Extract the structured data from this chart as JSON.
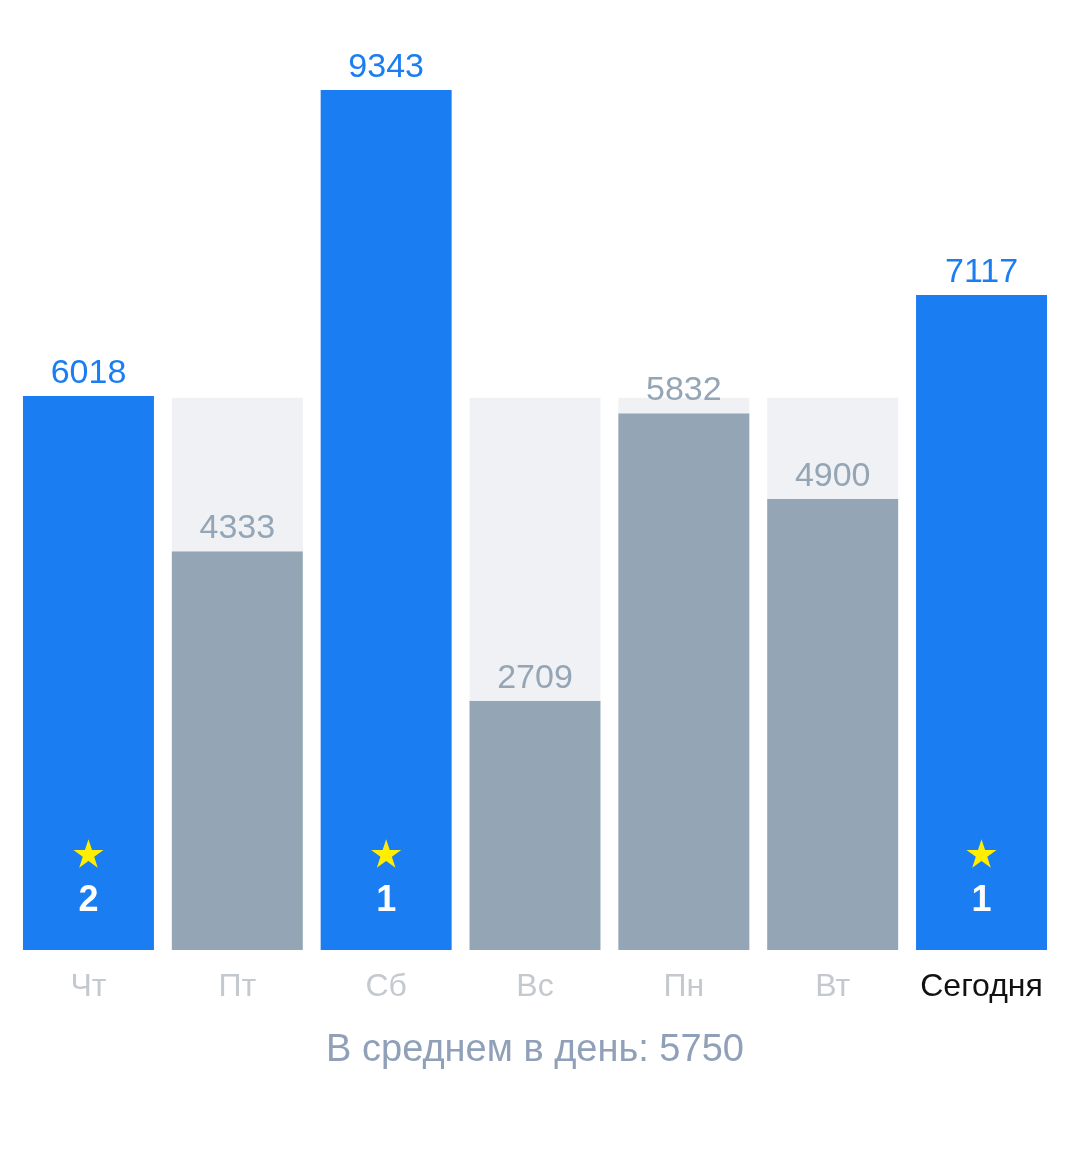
{
  "chart_data": {
    "type": "bar",
    "stacked": true,
    "categories": [
      "Чт",
      "Пт",
      "Сб",
      "Вс",
      "Пн",
      "Вт",
      "Сегодня"
    ],
    "series": [
      {
        "values": [
          6018,
          4333,
          9343,
          2709,
          5832,
          4900,
          7117
        ],
        "value_labels": [
          "6018",
          "4333",
          "9343",
          "2709",
          "5832",
          "4900",
          "7117"
        ],
        "colors": [
          "#1a7ef2",
          "#94a5b5",
          "#1a7ef2",
          "#94a5b5",
          "#94a5b5",
          "#94a5b5",
          "#1a7ef2"
        ]
      },
      {
        "values": [
          null,
          1667,
          null,
          3291,
          168,
          1100,
          null
        ],
        "color": "#eff1f5"
      }
    ],
    "annotations": [
      "2",
      "1",
      "1",
      "В среднем в день: 5750"
    ]
  }
}
